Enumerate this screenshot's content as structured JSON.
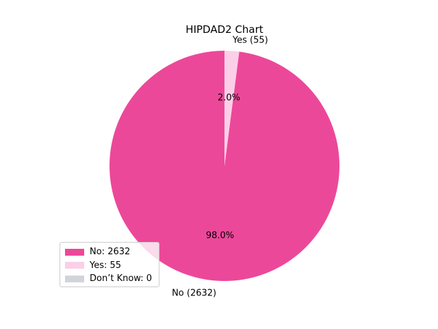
{
  "chart_data": {
    "type": "pie",
    "title": "HIPDAD2 Chart",
    "slices": [
      {
        "label": "No",
        "value": 2632,
        "color": "#ec4899",
        "outer_label": "No (2632)",
        "pct_label": "98.0%"
      },
      {
        "label": "Yes",
        "value": 55,
        "color": "#fbcfe8",
        "outer_label": "Yes (55)",
        "pct_label": "2.0%"
      },
      {
        "label": "Don’t Know",
        "value": 0,
        "color": "#d1d5db",
        "outer_label": "",
        "pct_label": ""
      }
    ],
    "start_angle_deg": 90,
    "direction": "counterclockwise",
    "legend": {
      "placement": "lower-left",
      "entries": [
        "No: 2632",
        "Yes: 55",
        "Don’t Know: 0"
      ]
    }
  }
}
